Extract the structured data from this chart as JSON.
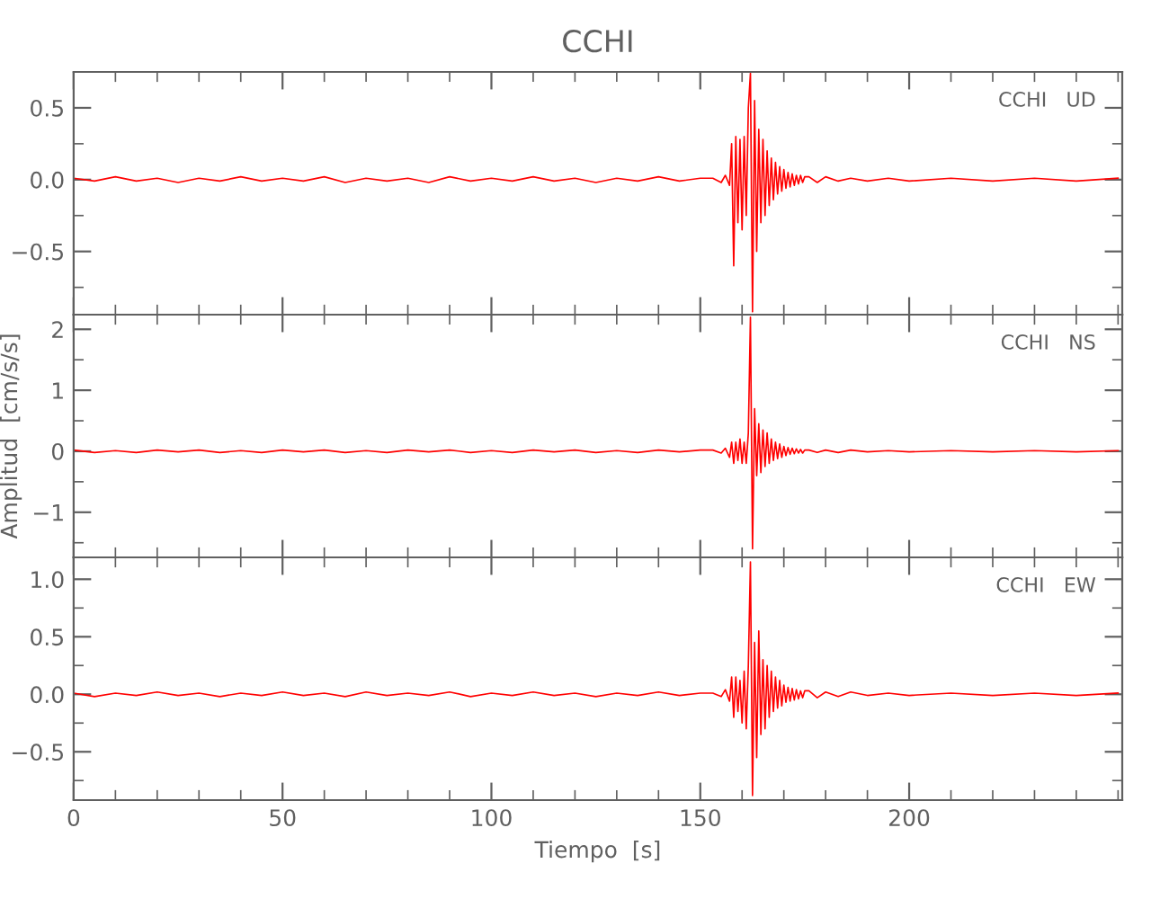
{
  "chart_data": [
    {
      "type": "line",
      "title": "CCHI",
      "annotations": [
        "CCHI   UD"
      ],
      "tick_labels": "y",
      "x": [
        0,
        5,
        10,
        15,
        20,
        25,
        30,
        35,
        40,
        45,
        50,
        55,
        60,
        65,
        70,
        75,
        80,
        85,
        90,
        95,
        100,
        105,
        110,
        115,
        120,
        125,
        130,
        135,
        140,
        145,
        150,
        153,
        155,
        156,
        157,
        157.5,
        158,
        158.5,
        159,
        159.5,
        160,
        160.5,
        161,
        161.5,
        162,
        162.5,
        163,
        163.5,
        164,
        164.5,
        165,
        165.5,
        166,
        166.5,
        167,
        167.5,
        168,
        168.5,
        169,
        169.5,
        170,
        170.5,
        171,
        171.5,
        172,
        172.5,
        173,
        173.5,
        174,
        174.5,
        175,
        176,
        178,
        180,
        183,
        186,
        190,
        195,
        200,
        210,
        220,
        230,
        240,
        250
      ],
      "series": [
        {
          "color": "#ff0000",
          "values": [
            0.01,
            -0.01,
            0.02,
            -0.01,
            0.01,
            -0.02,
            0.01,
            -0.01,
            0.02,
            -0.01,
            0.01,
            -0.01,
            0.02,
            -0.02,
            0.01,
            -0.01,
            0.01,
            -0.02,
            0.02,
            -0.01,
            0.01,
            -0.01,
            0.02,
            -0.01,
            0.01,
            -0.02,
            0.01,
            -0.01,
            0.02,
            -0.01,
            0.01,
            0.01,
            -0.02,
            0.03,
            -0.04,
            0.25,
            -0.6,
            0.3,
            -0.3,
            0.28,
            -0.35,
            0.3,
            -0.25,
            0.5,
            0.74,
            -0.92,
            0.55,
            -0.5,
            0.35,
            -0.3,
            0.28,
            -0.25,
            0.2,
            -0.18,
            0.15,
            -0.14,
            0.12,
            -0.1,
            0.09,
            -0.08,
            0.07,
            -0.06,
            0.05,
            -0.05,
            0.04,
            -0.04,
            0.03,
            -0.03,
            0.03,
            -0.02,
            0.02,
            0.02,
            -0.02,
            0.02,
            -0.01,
            0.01,
            -0.01,
            0.01,
            -0.01,
            0.01,
            -0.01,
            0.01,
            -0.01,
            0.01
          ]
        }
      ],
      "xlim": [
        0,
        251
      ],
      "xticks": [
        0,
        50,
        100,
        150,
        200
      ],
      "ylim": [
        -0.94,
        0.75
      ],
      "yticks": [
        {
          "value": -0.5,
          "label": "−0.5"
        },
        {
          "value": 0,
          "label": "0.0"
        },
        0.5
      ]
    },
    {
      "type": "line",
      "ylabel": "Amplitud  [cm/s/s]",
      "annotations": [
        "CCHI   NS"
      ],
      "tick_labels": "y",
      "x": [
        0,
        5,
        10,
        15,
        20,
        25,
        30,
        35,
        40,
        45,
        50,
        55,
        60,
        65,
        70,
        75,
        80,
        85,
        90,
        95,
        100,
        105,
        110,
        115,
        120,
        125,
        130,
        135,
        140,
        145,
        150,
        153,
        155,
        156,
        157,
        157.5,
        158,
        158.5,
        159,
        159.5,
        160,
        160.5,
        161,
        161.5,
        162,
        162.5,
        163,
        163.5,
        164,
        164.5,
        165,
        165.5,
        166,
        166.5,
        167,
        167.5,
        168,
        168.5,
        169,
        169.5,
        170,
        170.5,
        171,
        171.5,
        172,
        172.5,
        173,
        173.5,
        174,
        174.5,
        175,
        176,
        178,
        180,
        183,
        186,
        190,
        195,
        200,
        210,
        220,
        230,
        240,
        250
      ],
      "series": [
        {
          "color": "#ff0000",
          "values": [
            0.02,
            -0.02,
            0.01,
            -0.02,
            0.02,
            -0.01,
            0.02,
            -0.02,
            0.01,
            -0.02,
            0.02,
            -0.01,
            0.02,
            -0.02,
            0.01,
            -0.02,
            0.02,
            -0.01,
            0.02,
            -0.02,
            0.01,
            -0.02,
            0.02,
            -0.01,
            0.02,
            -0.02,
            0.01,
            -0.02,
            0.02,
            -0.01,
            0.02,
            0.02,
            -0.03,
            0.05,
            -0.1,
            0.15,
            -0.2,
            0.15,
            -0.15,
            0.2,
            -0.2,
            0.15,
            -0.2,
            0.3,
            2.2,
            -1.6,
            0.7,
            -0.4,
            0.45,
            -0.35,
            0.35,
            -0.25,
            0.3,
            -0.2,
            0.2,
            -0.15,
            0.15,
            -0.12,
            0.12,
            -0.1,
            0.08,
            -0.07,
            0.06,
            -0.05,
            0.05,
            -0.04,
            0.04,
            -0.03,
            0.03,
            -0.03,
            0.02,
            0.02,
            -0.02,
            0.02,
            -0.02,
            0.02,
            -0.01,
            0.01,
            -0.01,
            0.01,
            -0.01,
            0.01,
            -0.01,
            0.01
          ]
        }
      ],
      "xlim": [
        0,
        251
      ],
      "xticks": [
        0,
        50,
        100,
        150,
        200
      ],
      "ylim": [
        -1.74,
        2.24
      ],
      "yticks": [
        {
          "value": -1,
          "label": "−1"
        },
        0,
        1,
        2
      ]
    },
    {
      "type": "line",
      "xlabel": "Tiempo  [s]",
      "annotations": [
        "CCHI   EW"
      ],
      "x": [
        0,
        5,
        10,
        15,
        20,
        25,
        30,
        35,
        40,
        45,
        50,
        55,
        60,
        65,
        70,
        75,
        80,
        85,
        90,
        95,
        100,
        105,
        110,
        115,
        120,
        125,
        130,
        135,
        140,
        145,
        150,
        153,
        155,
        156,
        157,
        157.5,
        158,
        158.5,
        159,
        159.5,
        160,
        160.5,
        161,
        161.5,
        162,
        162.5,
        163,
        163.5,
        164,
        164.5,
        165,
        165.5,
        166,
        166.5,
        167,
        167.5,
        168,
        168.5,
        169,
        169.5,
        170,
        170.5,
        171,
        171.5,
        172,
        172.5,
        173,
        173.5,
        174,
        174.5,
        175,
        176,
        178,
        180,
        183,
        186,
        190,
        195,
        200,
        210,
        220,
        230,
        240,
        250
      ],
      "series": [
        {
          "color": "#ff0000",
          "values": [
            0.01,
            -0.02,
            0.01,
            -0.01,
            0.02,
            -0.01,
            0.01,
            -0.02,
            0.01,
            -0.01,
            0.02,
            -0.01,
            0.01,
            -0.02,
            0.02,
            -0.01,
            0.01,
            -0.01,
            0.02,
            -0.02,
            0.01,
            -0.01,
            0.02,
            -0.01,
            0.01,
            -0.02,
            0.01,
            -0.01,
            0.02,
            -0.01,
            0.01,
            0.01,
            -0.02,
            0.04,
            -0.06,
            0.15,
            -0.2,
            0.15,
            -0.15,
            0.12,
            -0.25,
            0.2,
            -0.3,
            0.25,
            1.15,
            -0.88,
            0.45,
            -0.55,
            0.55,
            -0.35,
            0.3,
            -0.3,
            0.25,
            -0.2,
            0.2,
            -0.15,
            0.15,
            -0.12,
            0.12,
            -0.1,
            0.08,
            -0.07,
            0.06,
            -0.06,
            0.05,
            -0.05,
            0.04,
            -0.04,
            0.03,
            -0.03,
            0.03,
            0.03,
            -0.03,
            0.02,
            -0.02,
            0.02,
            -0.01,
            0.01,
            -0.01,
            0.01,
            -0.01,
            0.01,
            -0.01,
            0.01
          ]
        }
      ],
      "xlim": [
        0,
        251
      ],
      "xticks": [
        0,
        50,
        100,
        150,
        200
      ],
      "ylim": [
        -0.92,
        1.19
      ],
      "yticks": [
        {
          "value": -0.5,
          "label": "−0.5"
        },
        {
          "value": 0,
          "label": "0.0"
        },
        0.5,
        {
          "value": 1,
          "label": "1.0"
        }
      ]
    }
  ]
}
